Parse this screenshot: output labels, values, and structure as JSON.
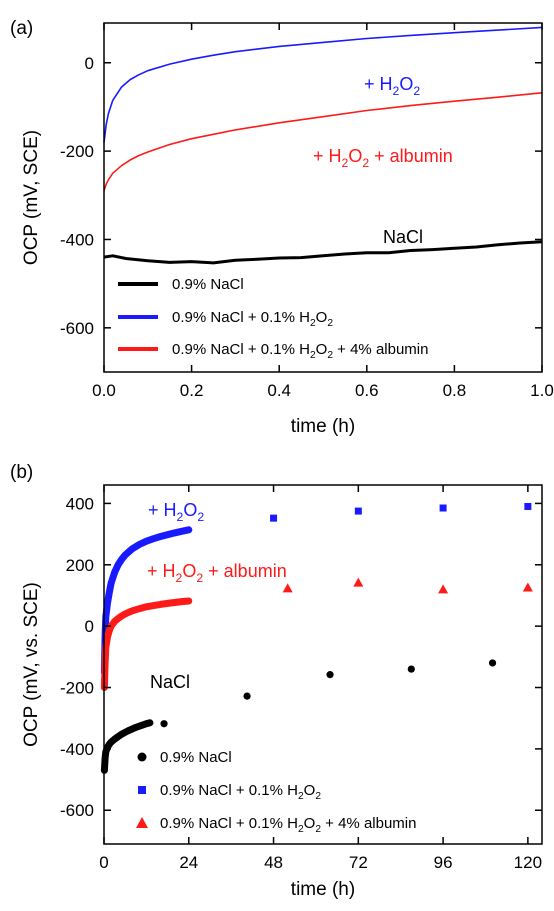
{
  "chart_data": [
    {
      "panel_label": "(a)",
      "type": "line",
      "xlabel": "time (h)",
      "ylabel": "OCP (mV, SCE)",
      "xlim": [
        0,
        1.0
      ],
      "ylim": [
        -700,
        90
      ],
      "xticks": [
        0.0,
        0.2,
        0.4,
        0.6,
        0.8,
        1.0
      ],
      "xtick_labels": [
        "0.0",
        "0.2",
        "0.4",
        "0.6",
        "0.8",
        "1.0"
      ],
      "yticks": [
        0,
        -200,
        -400,
        -600
      ],
      "ytick_labels": [
        "0",
        "-200",
        "-400",
        "-600"
      ],
      "legend_position": "bottom-left",
      "series": [
        {
          "name_parts": [
            "0.9% NaCl"
          ],
          "color": "#000000",
          "annotation_parts": [
            "NaCl"
          ],
          "x": [
            0.0,
            0.02,
            0.05,
            0.1,
            0.15,
            0.2,
            0.25,
            0.3,
            0.35,
            0.4,
            0.45,
            0.5,
            0.55,
            0.6,
            0.65,
            0.7,
            0.75,
            0.8,
            0.85,
            0.9,
            0.95,
            1.0
          ],
          "values": [
            -440,
            -437,
            -443,
            -448,
            -452,
            -450,
            -453,
            -447,
            -445,
            -442,
            -441,
            -437,
            -433,
            -430,
            -430,
            -425,
            -423,
            -420,
            -417,
            -412,
            -408,
            -405
          ]
        },
        {
          "name_parts": [
            "0.9% NaCl + 0.1% H",
            "2",
            "O",
            "2",
            ""
          ],
          "color": "#1a1aff",
          "annotation_parts": [
            "+ H",
            "2",
            "O",
            "2",
            ""
          ],
          "x": [
            0.0,
            0.005,
            0.01,
            0.02,
            0.04,
            0.06,
            0.08,
            0.1,
            0.15,
            0.2,
            0.25,
            0.3,
            0.4,
            0.5,
            0.6,
            0.7,
            0.8,
            0.9,
            1.0
          ],
          "values": [
            -180,
            -140,
            -115,
            -85,
            -55,
            -38,
            -27,
            -18,
            -3,
            8,
            17,
            25,
            37,
            46,
            55,
            62,
            68,
            74,
            80
          ]
        },
        {
          "name_parts": [
            "0.9% NaCl + 0.1% H",
            "2",
            "O",
            "2",
            " + 4% albumin"
          ],
          "color": "#ff1a1a",
          "annotation_parts": [
            "+ H",
            "2",
            "O",
            "2",
            " + albumin"
          ],
          "x": [
            0.0,
            0.005,
            0.01,
            0.02,
            0.04,
            0.06,
            0.08,
            0.1,
            0.15,
            0.2,
            0.25,
            0.3,
            0.4,
            0.5,
            0.6,
            0.7,
            0.8,
            0.9,
            1.0
          ],
          "values": [
            -290,
            -275,
            -265,
            -250,
            -233,
            -220,
            -210,
            -202,
            -185,
            -172,
            -162,
            -152,
            -136,
            -122,
            -108,
            -97,
            -87,
            -78,
            -68
          ]
        }
      ]
    },
    {
      "panel_label": "(b)",
      "type": "scatter",
      "xlabel": "time (h)",
      "ylabel": "OCP (mV, vs. SCE)",
      "xlim": [
        0,
        124
      ],
      "ylim": [
        -710,
        460
      ],
      "xticks": [
        0,
        24,
        48,
        72,
        96,
        120
      ],
      "xtick_labels": [
        "0",
        "24",
        "48",
        "72",
        "96",
        "120"
      ],
      "yticks": [
        400,
        200,
        0,
        -200,
        -400,
        -600
      ],
      "ytick_labels": [
        "400",
        "200",
        "0",
        "-200",
        "-400",
        "-600"
      ],
      "legend_position": "bottom-center",
      "series": [
        {
          "name_parts": [
            "0.9% NaCl"
          ],
          "color": "#000000",
          "marker": "circle",
          "annotation_parts": [
            "NaCl"
          ],
          "dense_x": [
            0.1,
            0.3,
            0.5,
            1,
            1.5,
            2,
            3,
            4,
            5,
            6,
            7,
            8,
            9,
            10,
            11,
            12,
            13
          ],
          "dense_values": [
            -470,
            -430,
            -410,
            -395,
            -385,
            -378,
            -368,
            -360,
            -352,
            -346,
            -340,
            -335,
            -330,
            -326,
            -322,
            -318,
            -315
          ],
          "x": [
            17,
            40.5,
            64,
            87,
            110
          ],
          "values": [
            -318,
            -228,
            -158,
            -140,
            -120
          ]
        },
        {
          "name_parts": [
            "0.9% NaCl + 0.1% H",
            "2",
            "O",
            "2",
            ""
          ],
          "color": "#1a1aff",
          "marker": "square",
          "annotation_parts": [
            "+ H",
            "2",
            "O",
            "2",
            ""
          ],
          "dense_x": [
            0.1,
            0.3,
            0.5,
            1,
            1.5,
            2,
            3,
            4,
            5,
            6,
            8,
            10,
            12,
            14,
            16,
            18,
            20,
            22,
            24
          ],
          "dense_values": [
            -150,
            -30,
            30,
            75,
            110,
            140,
            175,
            200,
            218,
            232,
            252,
            266,
            277,
            285,
            292,
            298,
            304,
            309,
            314
          ],
          "x": [
            48,
            72,
            96,
            120
          ],
          "values": [
            352,
            375,
            385,
            390
          ]
        },
        {
          "name_parts": [
            "0.9% NaCl + 0.1% H",
            "2",
            "O",
            "2",
            " + 4% albumin"
          ],
          "color": "#ff1a1a",
          "marker": "triangle",
          "annotation_parts": [
            "+ H",
            "2",
            "O",
            "2",
            " + albumin"
          ],
          "dense_x": [
            0.1,
            0.3,
            0.5,
            1,
            1.5,
            2,
            3,
            4,
            5,
            6,
            8,
            10,
            12,
            14,
            16,
            18,
            20,
            22,
            24
          ],
          "dense_values": [
            -200,
            -120,
            -70,
            -35,
            -15,
            0,
            15,
            25,
            33,
            40,
            50,
            57,
            63,
            67,
            71,
            74,
            77,
            80,
            82
          ],
          "x": [
            52,
            72,
            96,
            120
          ],
          "values": [
            123,
            142,
            120,
            126
          ]
        }
      ]
    }
  ]
}
